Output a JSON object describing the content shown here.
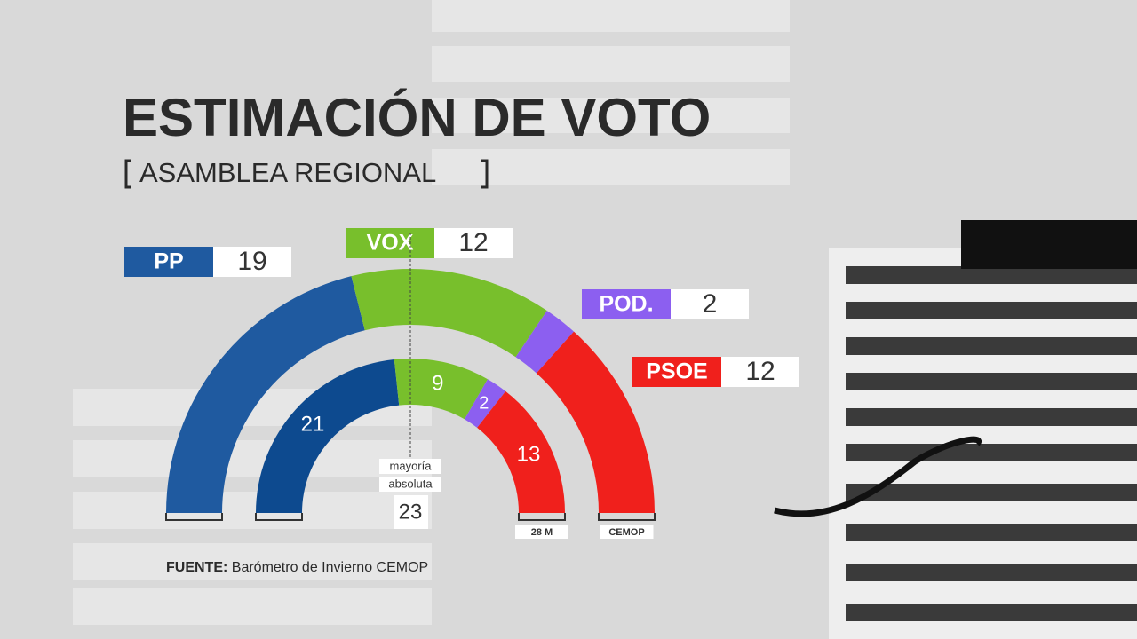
{
  "chart_data": {
    "type": "semicircle",
    "title": "ESTIMACIÓN DE VOTO",
    "subtitle": "ASAMBLEA REGIONAL",
    "categories": [
      "PP",
      "VOX",
      "POD.",
      "PSOE"
    ],
    "series": [
      {
        "name": "CEMOP",
        "values": [
          19,
          12,
          2,
          12
        ],
        "colors": [
          "#1f5aa0",
          "#78bf2c",
          "#8c5ff0",
          "#f0201c"
        ]
      },
      {
        "name": "28 M",
        "values": [
          21,
          9,
          2,
          13
        ],
        "colors": [
          "#0d4a8f",
          "#78bf2c",
          "#8c5ff0",
          "#f0201c"
        ]
      }
    ],
    "majority": {
      "label": [
        "mayoría",
        "absoluta"
      ],
      "value": 23
    },
    "source_label": "FUENTE:",
    "source": "Barómetro de Invierno CEMOP"
  }
}
